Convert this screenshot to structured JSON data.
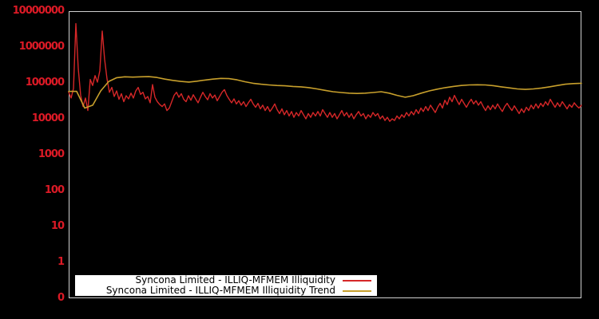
{
  "chart_data": {
    "type": "line",
    "title": "",
    "xlabel": "",
    "ylabel": "",
    "yscale": "log",
    "ylim": [
      1,
      10000000
    ],
    "grid": false,
    "x_tick_labels": [],
    "ytick_labels": [
      "10000000",
      "1000000",
      "100000",
      "10000",
      "1000",
      "100",
      "10",
      "1",
      "0"
    ],
    "background_color": "#000000",
    "border_color": "#cfcfcf",
    "tick_label_color": "#dc1a26",
    "legend_position": "bottom-center-inside",
    "legend_background": "#ffffff",
    "legend_text_color": "#000000",
    "series": [
      {
        "name": "Syncona Limited - ILLIQ-MFMEM Illiquidity",
        "color": "#d62728",
        "values": [
          55000,
          38000,
          70000,
          4500000,
          250000,
          45000,
          22000,
          38000,
          17000,
          125000,
          85000,
          160000,
          105000,
          220000,
          2800000,
          450000,
          130000,
          55000,
          75000,
          42000,
          60000,
          35000,
          50000,
          30000,
          44000,
          36000,
          52000,
          38000,
          60000,
          75000,
          48000,
          55000,
          36000,
          42000,
          28000,
          90000,
          40000,
          30000,
          25000,
          22000,
          26000,
          17000,
          20000,
          30000,
          45000,
          55000,
          40000,
          50000,
          35000,
          30000,
          44000,
          33000,
          47000,
          36000,
          28000,
          40000,
          55000,
          42000,
          34000,
          50000,
          38000,
          46000,
          32000,
          42000,
          55000,
          65000,
          45000,
          35000,
          28000,
          36000,
          26000,
          32000,
          24000,
          30000,
          22000,
          28000,
          35000,
          26000,
          21000,
          27000,
          19000,
          24000,
          17000,
          22000,
          16000,
          20000,
          26000,
          18000,
          14000,
          19000,
          13000,
          17000,
          12000,
          16000,
          11000,
          15000,
          12000,
          17000,
          13000,
          10000,
          14000,
          11000,
          15000,
          12000,
          16000,
          12000,
          18000,
          14000,
          11000,
          15000,
          11000,
          14000,
          10000,
          13000,
          17000,
          12000,
          15000,
          11000,
          14000,
          10000,
          13000,
          16000,
          12000,
          14000,
          10000,
          13000,
          11000,
          15000,
          12000,
          14000,
          10000,
          12000,
          9000,
          11000,
          8500,
          10000,
          9000,
          12000,
          10000,
          13000,
          11000,
          15000,
          12000,
          16000,
          13000,
          18000,
          14000,
          20000,
          16000,
          22000,
          17000,
          24000,
          19000,
          15000,
          21000,
          27000,
          20000,
          33000,
          25000,
          40000,
          30000,
          45000,
          33000,
          25000,
          35000,
          27000,
          21000,
          28000,
          35000,
          26000,
          32000,
          24000,
          30000,
          22000,
          17000,
          23000,
          18000,
          24000,
          19000,
          26000,
          20000,
          16000,
          22000,
          27000,
          21000,
          17000,
          23000,
          18000,
          14000,
          19000,
          15000,
          21000,
          17000,
          24000,
          19000,
          26000,
          20000,
          27000,
          22000,
          30000,
          24000,
          35000,
          27000,
          21000,
          28000,
          22000,
          30000,
          24000,
          19000,
          25000,
          21000,
          28000,
          23000,
          20000,
          24000
        ]
      },
      {
        "name": "Syncona Limited - ILLIQ-MFMEM Illiquidity Trend",
        "color": "#c8a02c",
        "values": [
          58000,
          58000,
          20000,
          24000,
          60000,
          110000,
          140000,
          148000,
          145000,
          148000,
          150000,
          142000,
          128000,
          118000,
          110000,
          106000,
          112000,
          120000,
          128000,
          134000,
          132000,
          122000,
          108000,
          98000,
          92000,
          88000,
          85000,
          83000,
          80000,
          78000,
          74000,
          68000,
          62000,
          57000,
          54000,
          52000,
          51000,
          52000,
          54000,
          57000,
          52000,
          45000,
          40000,
          44000,
          52000,
          60000,
          67000,
          74000,
          80000,
          85000,
          88000,
          89000,
          88000,
          84000,
          78000,
          73000,
          68000,
          66000,
          68000,
          72000,
          78000,
          85000,
          92000,
          96000,
          98000
        ]
      }
    ]
  }
}
